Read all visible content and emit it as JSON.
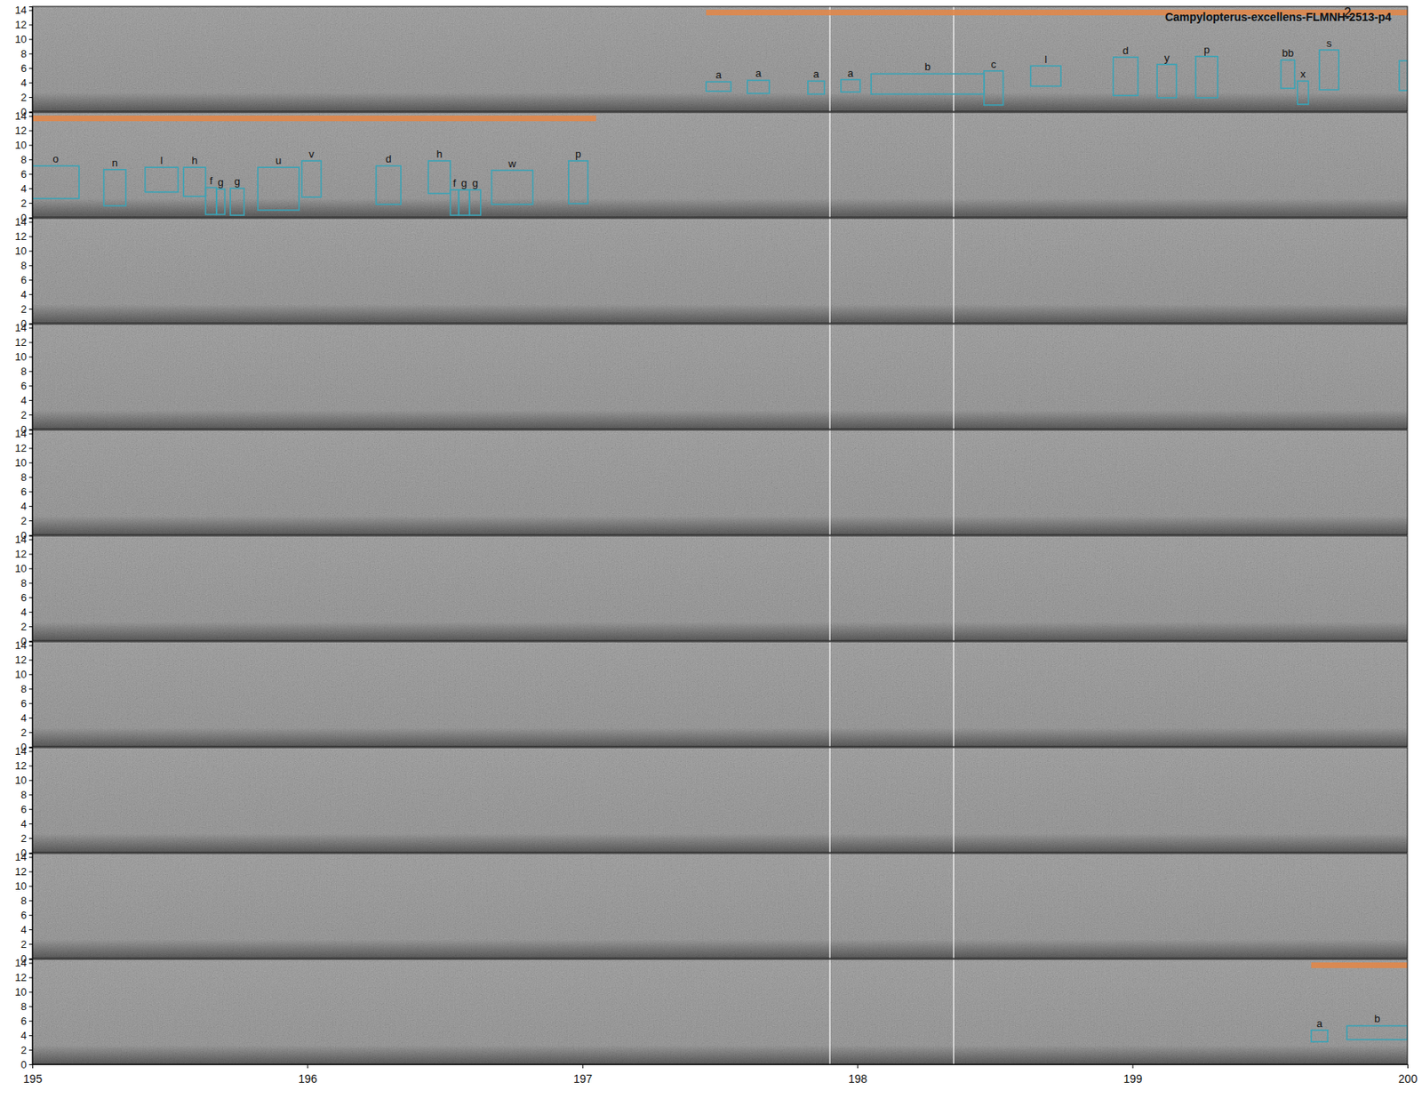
{
  "chart_data": {
    "type": "spectrogram",
    "title": "Campylopterus-excellens-FLMNH-2513-p4",
    "subtitle": "2",
    "xlim": [
      195,
      200
    ],
    "xticks": [
      195,
      196,
      197,
      198,
      199,
      200
    ],
    "ylim": [
      0,
      14.5
    ],
    "yticks": [
      0,
      2,
      4,
      6,
      8,
      10,
      12,
      14
    ],
    "vlines": [
      197.9,
      198.35
    ],
    "color": "#3aa3b6",
    "selection_color": "#e0874a",
    "panels": [
      {
        "selection": [
          197.45,
          200
        ],
        "boxes": [
          {
            "label": "a",
            "x": [
              197.45,
              197.54
            ],
            "y": [
              2.8,
              4.1
            ]
          },
          {
            "label": "a",
            "x": [
              197.6,
              197.68
            ],
            "y": [
              2.5,
              4.3
            ]
          },
          {
            "label": "a",
            "x": [
              197.82,
              197.88
            ],
            "y": [
              2.4,
              4.2
            ]
          },
          {
            "label": "a",
            "x": [
              197.94,
              198.01
            ],
            "y": [
              2.7,
              4.4
            ]
          },
          {
            "label": "b",
            "x": [
              198.05,
              198.46
            ],
            "y": [
              2.4,
              5.2
            ]
          },
          {
            "label": "c",
            "x": [
              198.46,
              198.53
            ],
            "y": [
              0.9,
              5.6
            ]
          },
          {
            "label": "l",
            "x": [
              198.63,
              198.74
            ],
            "y": [
              3.5,
              6.3
            ]
          },
          {
            "label": "d",
            "x": [
              198.93,
              199.02
            ],
            "y": [
              2.2,
              7.5
            ]
          },
          {
            "label": "y",
            "x": [
              199.09,
              199.16
            ],
            "y": [
              1.9,
              6.5
            ]
          },
          {
            "label": "p",
            "x": [
              199.23,
              199.31
            ],
            "y": [
              1.9,
              7.6
            ]
          },
          {
            "label": "bb",
            "x": [
              199.54,
              199.59
            ],
            "y": [
              3.2,
              7.1
            ]
          },
          {
            "label": "x",
            "x": [
              199.6,
              199.64
            ],
            "y": [
              1.0,
              4.2
            ]
          },
          {
            "label": "s",
            "x": [
              199.68,
              199.75
            ],
            "y": [
              3.0,
              8.5
            ]
          },
          {
            "label": null,
            "x": [
              199.97,
              200.0
            ],
            "y": [
              2.9,
              7.0
            ]
          }
        ]
      },
      {
        "selection": [
          195,
          197.05
        ],
        "boxes": [
          {
            "label": "o",
            "x": [
              195.0,
              195.17
            ],
            "y": [
              2.6,
              7.1
            ]
          },
          {
            "label": "n",
            "x": [
              195.26,
              195.34
            ],
            "y": [
              1.6,
              6.6
            ]
          },
          {
            "label": "l",
            "x": [
              195.41,
              195.53
            ],
            "y": [
              3.5,
              6.9
            ]
          },
          {
            "label": "h",
            "x": [
              195.55,
              195.63
            ],
            "y": [
              2.9,
              6.9
            ]
          },
          {
            "label": "f",
            "x": [
              195.63,
              195.67
            ],
            "y": [
              0.4,
              4.1
            ]
          },
          {
            "label": "g",
            "x": [
              195.67,
              195.7
            ],
            "y": [
              0.4,
              3.9
            ]
          },
          {
            "label": "g",
            "x": [
              195.72,
              195.77
            ],
            "y": [
              0.3,
              4.0
            ]
          },
          {
            "label": "u",
            "x": [
              195.82,
              195.97
            ],
            "y": [
              1.0,
              6.9
            ]
          },
          {
            "label": "v",
            "x": [
              195.98,
              196.05
            ],
            "y": [
              2.8,
              7.8
            ]
          },
          {
            "label": "d",
            "x": [
              196.25,
              196.34
            ],
            "y": [
              1.8,
              7.1
            ]
          },
          {
            "label": "h",
            "x": [
              196.44,
              196.52
            ],
            "y": [
              3.3,
              7.8
            ]
          },
          {
            "label": "f",
            "x": [
              196.52,
              196.55
            ],
            "y": [
              0.3,
              3.8
            ]
          },
          {
            "label": "g",
            "x": [
              196.55,
              196.59
            ],
            "y": [
              0.3,
              3.8
            ]
          },
          {
            "label": "g",
            "x": [
              196.59,
              196.63
            ],
            "y": [
              0.3,
              3.8
            ]
          },
          {
            "label": "w",
            "x": [
              196.67,
              196.82
            ],
            "y": [
              1.8,
              6.5
            ]
          },
          {
            "label": "p",
            "x": [
              196.95,
              197.02
            ],
            "y": [
              1.9,
              7.8
            ]
          }
        ]
      },
      {
        "selection": null,
        "boxes": []
      },
      {
        "selection": null,
        "boxes": []
      },
      {
        "selection": null,
        "boxes": []
      },
      {
        "selection": null,
        "boxes": []
      },
      {
        "selection": null,
        "boxes": []
      },
      {
        "selection": null,
        "boxes": []
      },
      {
        "selection": null,
        "boxes": []
      },
      {
        "selection": [
          199.65,
          200
        ],
        "boxes": [
          {
            "label": "a",
            "x": [
              199.65,
              199.71
            ],
            "y": [
              3.1,
              4.7
            ]
          },
          {
            "label": "b",
            "x": [
              199.78,
              200.0
            ],
            "y": [
              3.4,
              5.3
            ]
          }
        ]
      }
    ]
  }
}
